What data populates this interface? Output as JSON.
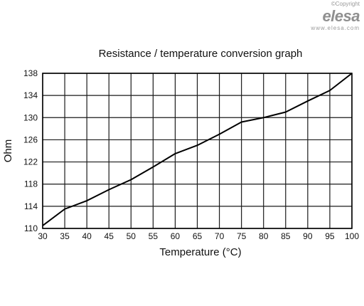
{
  "branding": {
    "copyright": "©Copyright",
    "logo": "elesa",
    "website": "www.elesa.com"
  },
  "chart_data": {
    "type": "line",
    "title": "Resistance / temperature conversion graph",
    "xlabel": "Temperature (°C)",
    "ylabel": "Ohm",
    "xlim": [
      30,
      100
    ],
    "ylim": [
      110,
      138
    ],
    "xticks": [
      30,
      35,
      40,
      45,
      50,
      55,
      60,
      65,
      70,
      75,
      80,
      85,
      90,
      95,
      100
    ],
    "yticks": [
      110,
      114,
      118,
      122,
      126,
      130,
      134,
      138
    ],
    "grid": true,
    "x": [
      30,
      35,
      40,
      45,
      50,
      55,
      60,
      65,
      70,
      75,
      80,
      85,
      90,
      95,
      100
    ],
    "series": [
      {
        "values": [
          110.5,
          113.5,
          115.0,
          117.0,
          118.8,
          121.1,
          123.5,
          125.0,
          127.0,
          129.2,
          130.0,
          131.0,
          133.0,
          134.9,
          138.0
        ]
      }
    ],
    "colors": {
      "line": "#000000",
      "grid": "#1a1a1a"
    }
  }
}
